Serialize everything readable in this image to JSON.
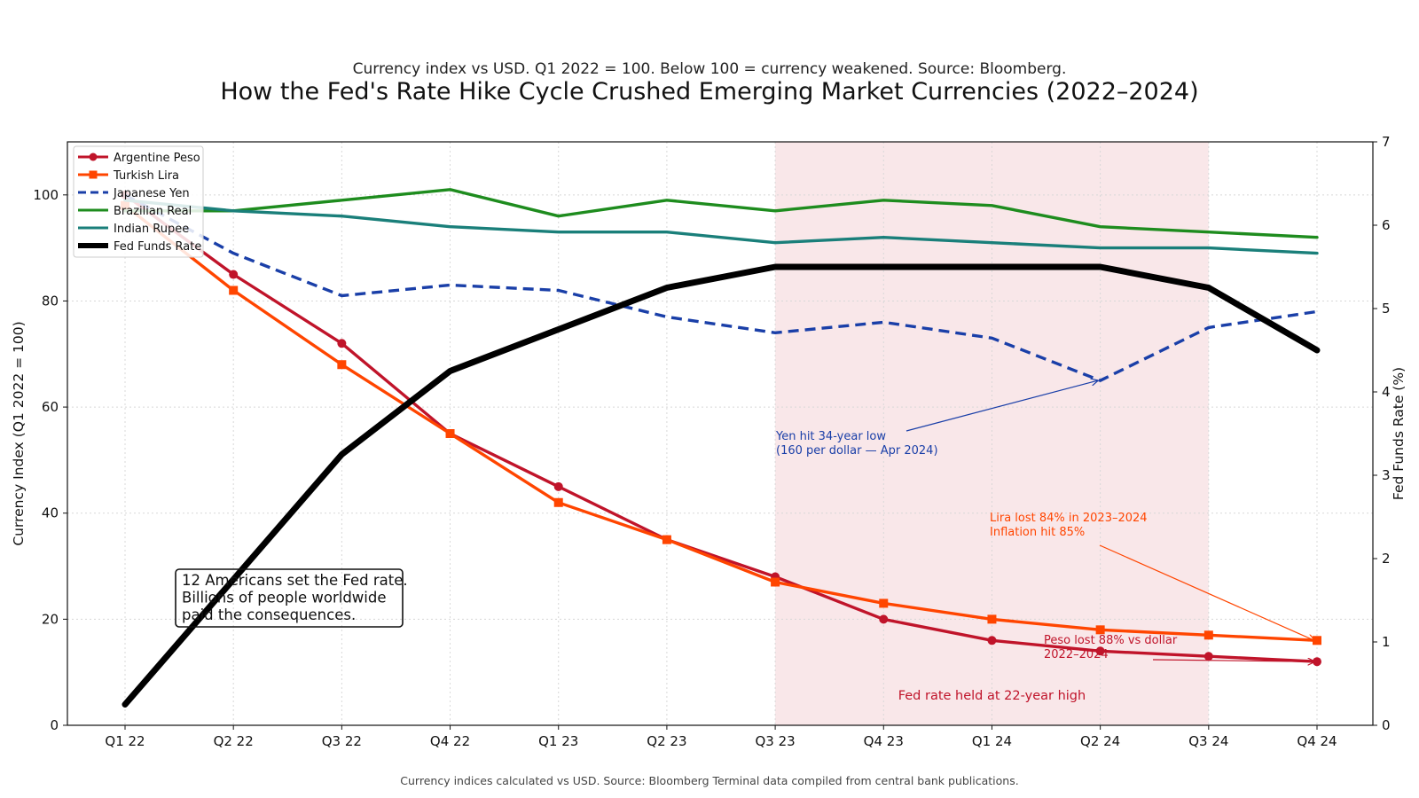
{
  "header": {
    "subtitle": "Currency index vs USD. Q1 2022 = 100. Below 100 = currency weakened. Source: Bloomberg.",
    "title": "How the Fed's Rate Hike Cycle Crushed Emerging Market Currencies (2022–2024)"
  },
  "footer": "Currency indices calculated vs USD. Source: Bloomberg Terminal data compiled from central bank publications.",
  "chart_data": {
    "type": "line",
    "title": "How the Fed's Rate Hike Cycle Crushed Emerging Market Currencies (2022–2024)",
    "subtitle": "Currency index vs USD. Q1 2022 = 100. Below 100 = currency weakened. Source: Bloomberg.",
    "categories": [
      "Q1 22",
      "Q2 22",
      "Q3 22",
      "Q4 22",
      "Q1 23",
      "Q2 23",
      "Q3 23",
      "Q4 23",
      "Q1 24",
      "Q2 24",
      "Q3 24",
      "Q4 24"
    ],
    "ylabel": "Currency Index (Q1 2022 = 100)",
    "y2label": "Fed Funds Rate (%)",
    "ylim": [
      0,
      110
    ],
    "y2lim": [
      0,
      7
    ],
    "yticks": [
      0,
      20,
      40,
      60,
      80,
      100
    ],
    "y2ticks": [
      0,
      1,
      2,
      3,
      4,
      5,
      6,
      7
    ],
    "grid": true,
    "legend_position": "top-left",
    "series": [
      {
        "name": "Argentine Peso",
        "axis": "left",
        "color": "#c0142a",
        "style": "solid",
        "marker": "circle",
        "values": [
          100,
          85,
          72,
          55,
          45,
          35,
          28,
          20,
          16,
          14,
          13,
          12
        ]
      },
      {
        "name": "Turkish Lira",
        "axis": "left",
        "color": "#ff4500",
        "style": "solid",
        "marker": "square",
        "values": [
          98,
          82,
          68,
          55,
          42,
          35,
          27,
          23,
          20,
          18,
          17,
          16
        ]
      },
      {
        "name": "Japanese Yen",
        "axis": "left",
        "color": "#1a3fa8",
        "style": "dashed",
        "marker": "none",
        "values": [
          100,
          89,
          81,
          83,
          82,
          77,
          74,
          76,
          73,
          65,
          75,
          78
        ]
      },
      {
        "name": "Brazilian Real",
        "axis": "left",
        "color": "#1e8c1e",
        "style": "solid",
        "marker": "none",
        "values": [
          97,
          97,
          99,
          101,
          96,
          99,
          97,
          99,
          98,
          94,
          93,
          92
        ]
      },
      {
        "name": "Indian Rupee",
        "axis": "left",
        "color": "#1a7f7a",
        "style": "solid",
        "marker": "none",
        "values": [
          99,
          97,
          96,
          94,
          93,
          93,
          91,
          92,
          91,
          90,
          90,
          89
        ]
      },
      {
        "name": "Fed Funds Rate",
        "axis": "right",
        "color": "#000000",
        "style": "solid",
        "marker": "none",
        "values": [
          0.25,
          1.75,
          3.25,
          4.25,
          4.75,
          5.25,
          5.5,
          5.5,
          5.5,
          5.5,
          5.25,
          4.5
        ]
      }
    ],
    "shaded_region": {
      "from": "Q3 23",
      "to": "Q3 24",
      "label": "Fed rate held at 22-year high",
      "color": "#c0142a"
    },
    "annotations": [
      {
        "lines": [
          "Yen hit 34-year low",
          "(160 per dollar — Apr 2024)"
        ],
        "color": "#1a3fa8",
        "arrow_to": {
          "category": "Q2 24",
          "value": 65
        }
      },
      {
        "lines": [
          "Lira lost 84% in 2023–2024",
          "Inflation hit 85%"
        ],
        "color": "#ff4500",
        "arrow_to": {
          "category": "Q4 24",
          "value": 16
        }
      },
      {
        "lines": [
          "Peso lost 88% vs dollar",
          "2022–2024"
        ],
        "color": "#c0142a",
        "arrow_to": {
          "category": "Q4 24",
          "value": 12
        }
      }
    ],
    "callout": {
      "lines": [
        "12 Americans set the Fed rate.",
        "Billions of people worldwide",
        "paid the consequences."
      ]
    }
  }
}
